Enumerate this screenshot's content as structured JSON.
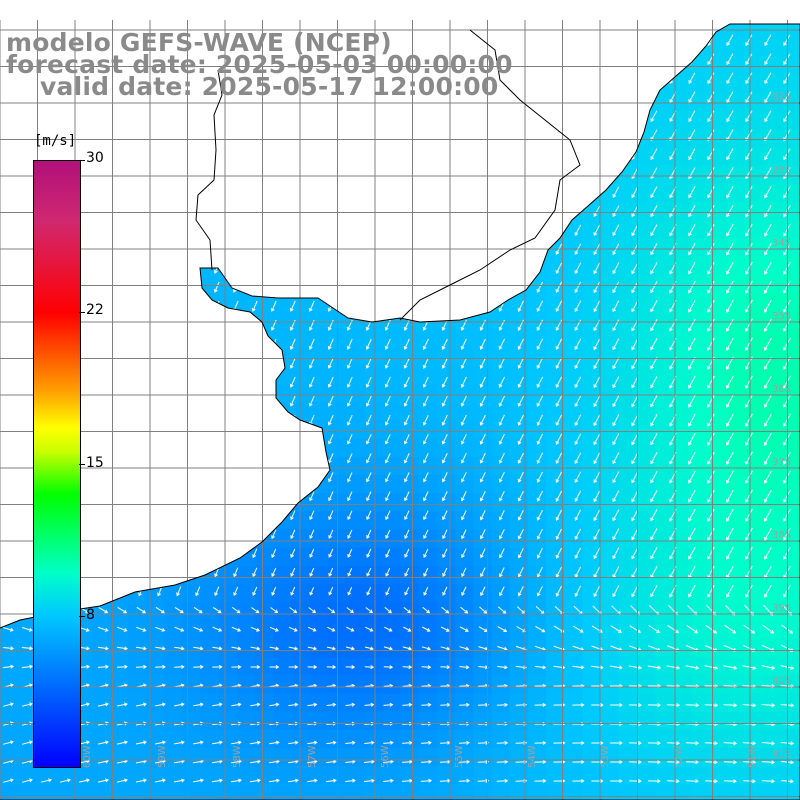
{
  "header": {
    "title": "modelo GEFS-WAVE (NCEP)",
    "forecast_date": "forecast date: 2025-05-03 00:00:00",
    "valid_date": "valid date: 2025-05-17 12:00:00"
  },
  "colorbar": {
    "unit": "[m/s]",
    "ticks": [
      "30",
      "22",
      "15",
      "8"
    ],
    "tick_values": [
      30,
      22,
      15,
      8
    ],
    "min_value": 0,
    "max_value": 30,
    "color_stops": [
      "#0000ff",
      "#00c8ff",
      "#00ffc8",
      "#00ff00",
      "#ffff00",
      "#ffa000",
      "#ff0000",
      "#b0107a"
    ]
  },
  "map": {
    "latitude_labels": [
      "32S",
      "33S",
      "34S",
      "35S",
      "36S",
      "37S",
      "38S",
      "39S",
      "40S",
      "41S"
    ],
    "longitude_labels": [
      "60W",
      "59W",
      "58W",
      "57W",
      "56W",
      "55W",
      "54W",
      "53W",
      "52W",
      "51W"
    ],
    "colors": {
      "land": "#ffffff",
      "grid": "#808080",
      "coast": "#000000",
      "arrows": "#ffffff"
    }
  }
}
